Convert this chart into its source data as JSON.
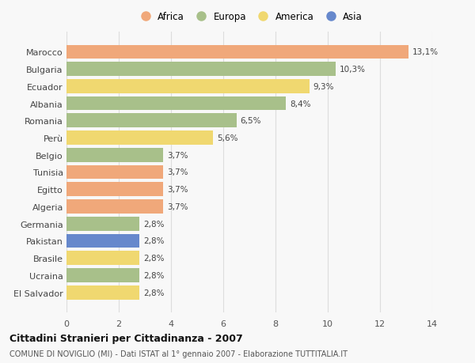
{
  "categories": [
    "Marocco",
    "Bulgaria",
    "Ecuador",
    "Albania",
    "Romania",
    "Perù",
    "Belgio",
    "Tunisia",
    "Egitto",
    "Algeria",
    "Germania",
    "Pakistan",
    "Brasile",
    "Ucraina",
    "El Salvador"
  ],
  "values": [
    13.1,
    10.3,
    9.3,
    8.4,
    6.5,
    5.6,
    3.7,
    3.7,
    3.7,
    3.7,
    2.8,
    2.8,
    2.8,
    2.8,
    2.8
  ],
  "continents": [
    "Africa",
    "Europa",
    "America",
    "Europa",
    "Europa",
    "America",
    "Europa",
    "Africa",
    "Africa",
    "Africa",
    "Europa",
    "Asia",
    "America",
    "Europa",
    "America"
  ],
  "labels": [
    "13,1%",
    "10,3%",
    "9,3%",
    "8,4%",
    "6,5%",
    "5,6%",
    "3,7%",
    "3,7%",
    "3,7%",
    "3,7%",
    "2,8%",
    "2,8%",
    "2,8%",
    "2,8%",
    "2,8%"
  ],
  "continent_colors": {
    "Africa": "#F0A87A",
    "Europa": "#A8C08A",
    "America": "#F0D870",
    "Asia": "#6688CC"
  },
  "legend_order": [
    "Africa",
    "Europa",
    "America",
    "Asia"
  ],
  "xlim": [
    0,
    14
  ],
  "xticks": [
    0,
    2,
    4,
    6,
    8,
    10,
    12,
    14
  ],
  "title": "Cittadini Stranieri per Cittadinanza - 2007",
  "subtitle": "COMUNE DI NOVIGLIO (MI) - Dati ISTAT al 1° gennaio 2007 - Elaborazione TUTTITALIA.IT",
  "background_color": "#F8F8F8",
  "grid_color": "#DDDDDD",
  "bar_height": 0.82
}
